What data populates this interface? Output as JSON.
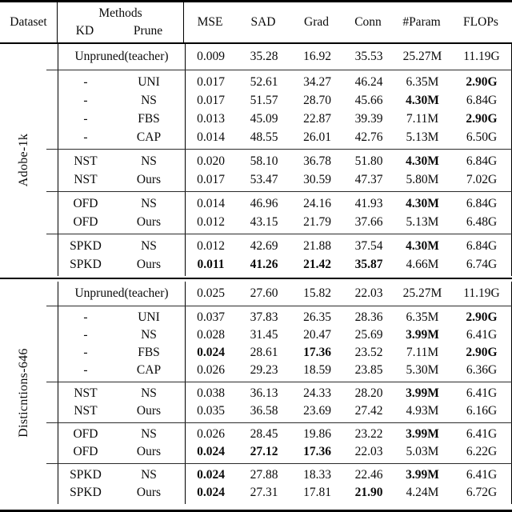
{
  "header": {
    "dataset": "Dataset",
    "methods": "Methods",
    "kd": "KD",
    "prune": "Prune",
    "metrics": [
      "MSE",
      "SAD",
      "Grad",
      "Conn",
      "#Param",
      "FLOPs"
    ]
  },
  "sections": [
    {
      "dataset_label": "Adobe-1k",
      "groups": [
        {
          "teacher": true,
          "rows": [
            {
              "label": "Unpruned(teacher)",
              "values": [
                "0.009",
                "35.28",
                "16.92",
                "35.53",
                "25.27M",
                "11.19G"
              ],
              "bold": []
            }
          ]
        },
        {
          "rows": [
            {
              "kd": "-",
              "prune": "UNI",
              "values": [
                "0.017",
                "52.61",
                "34.27",
                "46.24",
                "6.35M",
                "2.90G"
              ],
              "bold": [
                5
              ]
            },
            {
              "kd": "-",
              "prune": "NS",
              "values": [
                "0.017",
                "51.57",
                "28.70",
                "45.66",
                "4.30M",
                "6.84G"
              ],
              "bold": [
                4
              ]
            },
            {
              "kd": "-",
              "prune": "FBS",
              "values": [
                "0.013",
                "45.09",
                "22.87",
                "39.39",
                "7.11M",
                "2.90G"
              ],
              "bold": [
                5
              ]
            },
            {
              "kd": "-",
              "prune": "CAP",
              "values": [
                "0.014",
                "48.55",
                "26.01",
                "42.76",
                "5.13M",
                "6.50G"
              ],
              "bold": []
            }
          ]
        },
        {
          "rows": [
            {
              "kd": "NST",
              "prune": "NS",
              "values": [
                "0.020",
                "58.10",
                "36.78",
                "51.80",
                "4.30M",
                "6.84G"
              ],
              "bold": [
                4
              ]
            },
            {
              "kd": "NST",
              "prune": "Ours",
              "values": [
                "0.017",
                "53.47",
                "30.59",
                "47.37",
                "5.80M",
                "7.02G"
              ],
              "bold": []
            }
          ]
        },
        {
          "rows": [
            {
              "kd": "OFD",
              "prune": "NS",
              "values": [
                "0.014",
                "46.96",
                "24.16",
                "41.93",
                "4.30M",
                "6.84G"
              ],
              "bold": [
                4
              ]
            },
            {
              "kd": "OFD",
              "prune": "Ours",
              "values": [
                "0.012",
                "43.15",
                "21.79",
                "37.66",
                "5.13M",
                "6.48G"
              ],
              "bold": []
            }
          ]
        },
        {
          "rows": [
            {
              "kd": "SPKD",
              "prune": "NS",
              "values": [
                "0.012",
                "42.69",
                "21.88",
                "37.54",
                "4.30M",
                "6.84G"
              ],
              "bold": [
                4
              ]
            },
            {
              "kd": "SPKD",
              "prune": "Ours",
              "values": [
                "0.011",
                "41.26",
                "21.42",
                "35.87",
                "4.66M",
                "6.74G"
              ],
              "bold": [
                0,
                1,
                2,
                3
              ]
            }
          ]
        }
      ]
    },
    {
      "dataset_label": "Disticntions-646",
      "groups": [
        {
          "teacher": true,
          "rows": [
            {
              "label": "Unpruned(teacher)",
              "values": [
                "0.025",
                "27.60",
                "15.82",
                "22.03",
                "25.27M",
                "11.19G"
              ],
              "bold": []
            }
          ]
        },
        {
          "rows": [
            {
              "kd": "-",
              "prune": "UNI",
              "values": [
                "0.037",
                "37.83",
                "26.35",
                "28.36",
                "6.35M",
                "2.90G"
              ],
              "bold": [
                5
              ]
            },
            {
              "kd": "-",
              "prune": "NS",
              "values": [
                "0.028",
                "31.45",
                "20.47",
                "25.69",
                "3.99M",
                "6.41G"
              ],
              "bold": [
                4
              ]
            },
            {
              "kd": "-",
              "prune": "FBS",
              "values": [
                "0.024",
                "28.61",
                "17.36",
                "23.52",
                "7.11M",
                "2.90G"
              ],
              "bold": [
                0,
                2,
                5
              ]
            },
            {
              "kd": "-",
              "prune": "CAP",
              "values": [
                "0.026",
                "29.23",
                "18.59",
                "23.85",
                "5.30M",
                "6.36G"
              ],
              "bold": []
            }
          ]
        },
        {
          "rows": [
            {
              "kd": "NST",
              "prune": "NS",
              "values": [
                "0.038",
                "36.13",
                "24.33",
                "28.20",
                "3.99M",
                "6.41G"
              ],
              "bold": [
                4
              ]
            },
            {
              "kd": "NST",
              "prune": "Ours",
              "values": [
                "0.035",
                "36.58",
                "23.69",
                "27.42",
                "4.93M",
                "6.16G"
              ],
              "bold": []
            }
          ]
        },
        {
          "rows": [
            {
              "kd": "OFD",
              "prune": "NS",
              "values": [
                "0.026",
                "28.45",
                "19.86",
                "23.22",
                "3.99M",
                "6.41G"
              ],
              "bold": [
                4
              ]
            },
            {
              "kd": "OFD",
              "prune": "Ours",
              "values": [
                "0.024",
                "27.12",
                "17.36",
                "22.03",
                "5.03M",
                "6.22G"
              ],
              "bold": [
                0,
                1,
                2
              ]
            }
          ]
        },
        {
          "rows": [
            {
              "kd": "SPKD",
              "prune": "NS",
              "values": [
                "0.024",
                "27.88",
                "18.33",
                "22.46",
                "3.99M",
                "6.41G"
              ],
              "bold": [
                0,
                4
              ]
            },
            {
              "kd": "SPKD",
              "prune": "Ours",
              "values": [
                "0.024",
                "27.31",
                "17.81",
                "21.90",
                "4.24M",
                "6.72G"
              ],
              "bold": [
                0,
                3
              ]
            }
          ]
        }
      ]
    }
  ]
}
